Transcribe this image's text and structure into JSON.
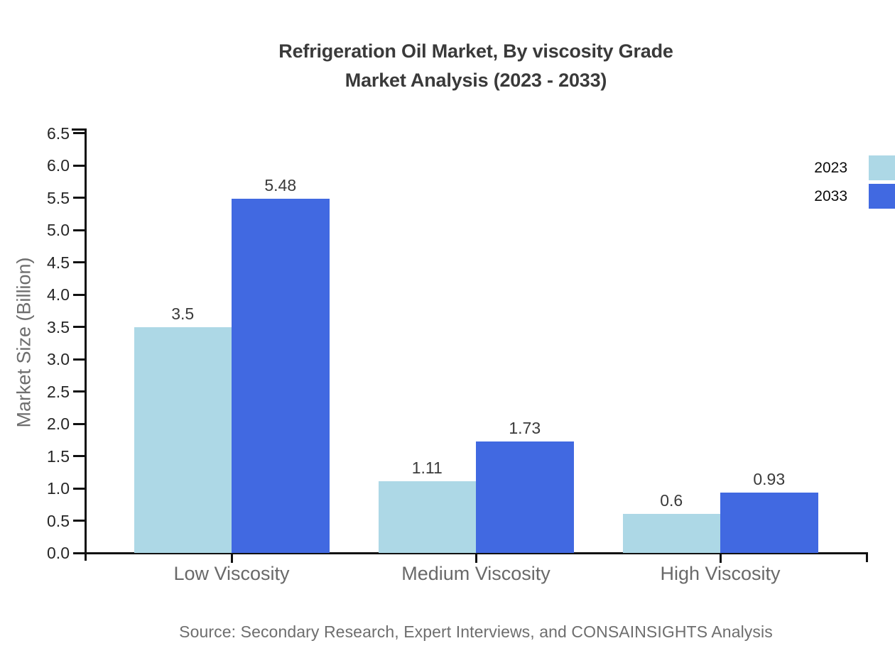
{
  "title": {
    "line1": "Refrigeration Oil Market, By viscosity Grade",
    "line2": "Market Analysis (2023 - 2033)"
  },
  "source": "Source: Secondary Research, Expert Interviews, and CONSAINSIGHTS Analysis",
  "chart_data": {
    "type": "bar",
    "categories": [
      "Low Viscosity",
      "Medium Viscosity",
      "High Viscosity"
    ],
    "series": [
      {
        "name": "2023",
        "color": "#ADD8E6",
        "values": [
          3.5,
          1.11,
          0.6
        ]
      },
      {
        "name": "2033",
        "color": "#4169E1",
        "values": [
          5.48,
          1.73,
          0.93
        ]
      }
    ],
    "value_labels": [
      [
        "3.5",
        "1.11",
        "0.6"
      ],
      [
        "5.48",
        "1.73",
        "0.93"
      ]
    ],
    "title": "Refrigeration Oil Market, By viscosity Grade Market Analysis (2023 - 2033)",
    "xlabel": "",
    "ylabel": "Market Size (Billion)",
    "ylim": [
      0,
      6.5
    ],
    "ytick_step": 0.5,
    "yticks": [
      "0.0",
      "0.5",
      "1.0",
      "1.5",
      "2.0",
      "2.5",
      "3.0",
      "3.5",
      "4.0",
      "4.5",
      "5.0",
      "5.5",
      "6.0",
      "6.5"
    ],
    "grid": false,
    "legend_position": "upper-right-outside"
  },
  "colors": {
    "axis": "#111111",
    "title_text": "#3a3a3a",
    "tick_label": "#262626",
    "value_label": "#3a3a3a",
    "category_label": "#696969",
    "muted_label": "#6e6e6e",
    "series_2023": "#ADD8E6",
    "series_2033": "#4169E1"
  }
}
